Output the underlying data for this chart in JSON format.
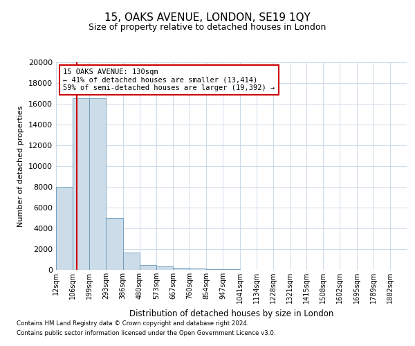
{
  "title": "15, OAKS AVENUE, LONDON, SE19 1QY",
  "subtitle": "Size of property relative to detached houses in London",
  "xlabel": "Distribution of detached houses by size in London",
  "ylabel": "Number of detached properties",
  "bar_labels": [
    "12sqm",
    "106sqm",
    "199sqm",
    "293sqm",
    "386sqm",
    "480sqm",
    "573sqm",
    "667sqm",
    "760sqm",
    "854sqm",
    "947sqm",
    "1041sqm",
    "1134sqm",
    "1228sqm",
    "1321sqm",
    "1415sqm",
    "1508sqm",
    "1602sqm",
    "1695sqm",
    "1789sqm",
    "1882sqm"
  ],
  "bar_heights": [
    8000,
    16500,
    16500,
    5000,
    1700,
    500,
    350,
    200,
    130,
    80,
    35,
    5,
    0,
    0,
    0,
    0,
    0,
    0,
    0,
    0,
    0
  ],
  "bar_color": "#ccdce9",
  "bar_edge_color": "#6699bb",
  "grid_color": "#c5d5e5",
  "background_color": "#ffffff",
  "property_line_color": "#cc0000",
  "annotation_text": "15 OAKS AVENUE: 130sqm\n← 41% of detached houses are smaller (13,414)\n59% of semi-detached houses are larger (19,392) →",
  "annotation_box_color": "#ffffff",
  "annotation_box_edge_color": "#cc0000",
  "footer_line1": "Contains HM Land Registry data © Crown copyright and database right 2024.",
  "footer_line2": "Contains public sector information licensed under the Open Government Licence v3.0.",
  "ylim": [
    0,
    20000
  ],
  "yticks": [
    0,
    2000,
    4000,
    6000,
    8000,
    10000,
    12000,
    14000,
    16000,
    18000,
    20000
  ]
}
